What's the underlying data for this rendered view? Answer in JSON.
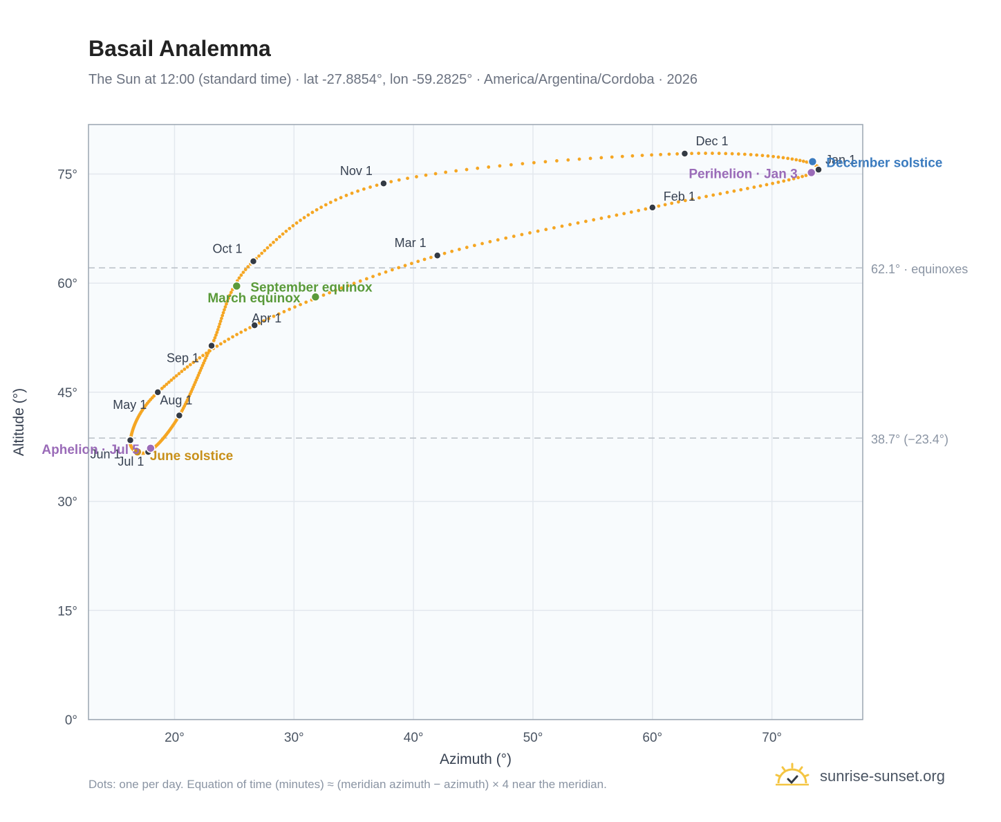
{
  "header": {
    "title": "Basail Analemma",
    "subtitle": "The Sun at 12:00 (standard time) · lat -27.8854°, lon -59.2825° · America/Argentina/Cordoba · 2026"
  },
  "footer": {
    "note": "Dots: one per day. Equation of time (minutes) ≈ (meridian azimuth − azimuth) × 4 near the meridian.",
    "brand": "sunrise-sunset.org",
    "brand_icon": "sun-logo-icon"
  },
  "colors": {
    "path": "#f5a623",
    "month_dot": "#333a44",
    "equinox": "#5a9a3a",
    "june_solstice": "#c8901a",
    "december_solstice": "#3a7bbf",
    "apsis": "#9a6bb8",
    "grid": "#e3e8ee",
    "plot_bg": "#f8fbfd",
    "frame": "#9aa5b1",
    "ref_line": "#b8bec6"
  },
  "chart_data": {
    "type": "scatter",
    "xlabel": "Azimuth (°)",
    "ylabel": "Altitude (°)",
    "xlim": [
      12.8,
      77.6
    ],
    "ylim": [
      0,
      81.8
    ],
    "xticks": [
      20,
      30,
      40,
      50,
      60,
      70
    ],
    "yticks": [
      0,
      15,
      30,
      45,
      60,
      75
    ],
    "x_tick_labels": [
      "20°",
      "30°",
      "40°",
      "50°",
      "60°",
      "70°"
    ],
    "y_tick_labels": [
      "0°",
      "15°",
      "30°",
      "45°",
      "60°",
      "75°"
    ],
    "grid": true,
    "reference_lines": [
      {
        "y": 62.1,
        "label": "62.1° · equinoxes"
      },
      {
        "y": 38.7,
        "label": "38.7° (−23.4°)"
      }
    ],
    "month_points": [
      {
        "label": "Jan 1",
        "x": 73.9,
        "y": 75.6
      },
      {
        "label": "Feb 1",
        "x": 60.0,
        "y": 70.4
      },
      {
        "label": "Mar 1",
        "x": 42.0,
        "y": 63.8
      },
      {
        "label": "Apr 1",
        "x": 26.7,
        "y": 54.2
      },
      {
        "label": "May 1",
        "x": 18.6,
        "y": 45.0
      },
      {
        "label": "Jun 1",
        "x": 16.3,
        "y": 38.4
      },
      {
        "label": "Jul 1",
        "x": 17.8,
        "y": 36.8
      },
      {
        "label": "Aug 1",
        "x": 20.4,
        "y": 41.8
      },
      {
        "label": "Sep 1",
        "x": 23.1,
        "y": 51.4
      },
      {
        "label": "Oct 1",
        "x": 26.6,
        "y": 63.0
      },
      {
        "label": "Nov 1",
        "x": 37.5,
        "y": 73.7
      },
      {
        "label": "Dec 1",
        "x": 62.7,
        "y": 77.8
      }
    ],
    "events": [
      {
        "label": "March equinox",
        "x": 31.8,
        "y": 58.1,
        "kind": "equinox"
      },
      {
        "label": "September equinox",
        "x": 25.2,
        "y": 59.6,
        "kind": "equinox"
      },
      {
        "label": "June solstice",
        "x": 16.9,
        "y": 36.8,
        "kind": "june_solstice"
      },
      {
        "label": "December solstice",
        "x": 73.4,
        "y": 76.7,
        "kind": "december_solstice"
      },
      {
        "label": "Perihelion · Jan 3",
        "x": 73.3,
        "y": 75.2,
        "kind": "apsis"
      },
      {
        "label": "Aphelion · Jul 5",
        "x": 18.0,
        "y": 37.3,
        "kind": "apsis"
      }
    ]
  }
}
